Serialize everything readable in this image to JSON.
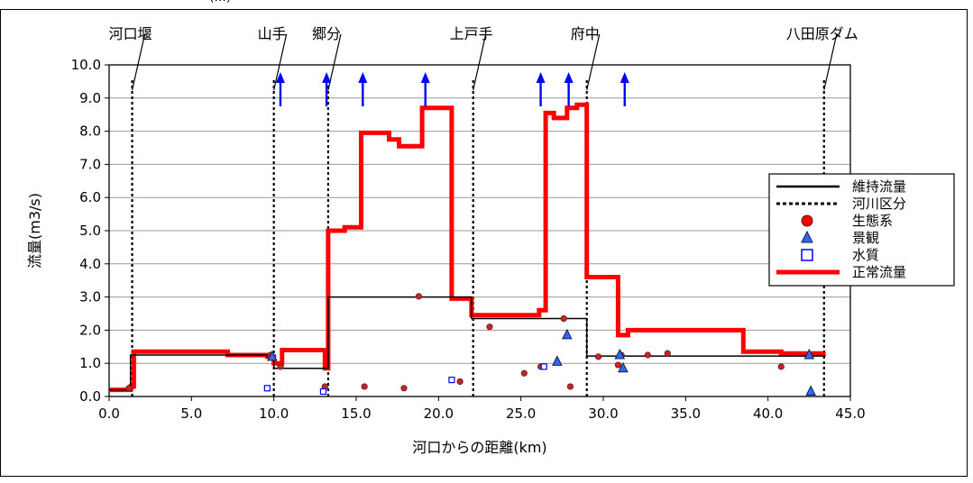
{
  "header_fragment": "(...)",
  "chart_data": {
    "type": "line",
    "xlabel": "河口からの距離(km)",
    "ylabel": "流量(m3/s)",
    "xlim": [
      0,
      45
    ],
    "ylim": [
      0,
      10
    ],
    "xticks": [
      0,
      5,
      10,
      15,
      20,
      25,
      30,
      35,
      40,
      45
    ],
    "yticks": [
      0,
      1,
      2,
      3,
      4,
      5,
      6,
      7,
      8,
      9,
      10
    ],
    "xtick_labels": [
      "0.0",
      "5.0",
      "10.0",
      "15.0",
      "20.0",
      "25.0",
      "30.0",
      "35.0",
      "40.0",
      "45.0"
    ],
    "ytick_labels": [
      "0.0",
      "1.0",
      "2.0",
      "3.0",
      "4.0",
      "5.0",
      "6.0",
      "7.0",
      "8.0",
      "9.0",
      "10.0"
    ],
    "grid": true,
    "legend_position": "right",
    "legend": [
      {
        "label": "維持流量",
        "kind": "line",
        "color": "#000000"
      },
      {
        "label": "河川区分",
        "kind": "dotted",
        "color": "#000000"
      },
      {
        "label": "生態系",
        "kind": "circle",
        "color": "#ff0000"
      },
      {
        "label": "景観",
        "kind": "triangle",
        "color": "#3366ff"
      },
      {
        "label": "水質",
        "kind": "square",
        "color": "#0000ff"
      },
      {
        "label": "正常流量",
        "kind": "thickline",
        "color": "#ff0000"
      }
    ],
    "series": [
      {
        "name": "正常流量",
        "color": "#ff0000",
        "points": [
          [
            0,
            0.2
          ],
          [
            1.3,
            0.2
          ],
          [
            1.3,
            0.3
          ],
          [
            1.5,
            0.3
          ],
          [
            1.5,
            1.35
          ],
          [
            7.2,
            1.35
          ],
          [
            7.2,
            1.25
          ],
          [
            9.6,
            1.25
          ],
          [
            9.6,
            1.2
          ],
          [
            10.0,
            1.2
          ],
          [
            10.0,
            1.0
          ],
          [
            10.5,
            1.0
          ],
          [
            10.5,
            1.4
          ],
          [
            13.1,
            1.4
          ],
          [
            13.1,
            0.85
          ],
          [
            13.3,
            0.85
          ],
          [
            13.3,
            5.0
          ],
          [
            14.3,
            5.0
          ],
          [
            14.3,
            5.1
          ],
          [
            15.3,
            5.1
          ],
          [
            15.3,
            7.95
          ],
          [
            17.0,
            7.95
          ],
          [
            17.0,
            7.75
          ],
          [
            17.6,
            7.75
          ],
          [
            17.6,
            7.55
          ],
          [
            19.0,
            7.55
          ],
          [
            19.0,
            8.7
          ],
          [
            20.8,
            8.7
          ],
          [
            20.8,
            2.95
          ],
          [
            22.0,
            2.95
          ],
          [
            22.0,
            2.45
          ],
          [
            26.1,
            2.45
          ],
          [
            26.1,
            2.6
          ],
          [
            26.5,
            2.6
          ],
          [
            26.5,
            8.55
          ],
          [
            27.0,
            8.55
          ],
          [
            27.0,
            8.4
          ],
          [
            27.8,
            8.4
          ],
          [
            27.8,
            8.7
          ],
          [
            28.4,
            8.7
          ],
          [
            28.4,
            8.8
          ],
          [
            29.0,
            8.8
          ],
          [
            29.0,
            3.6
          ],
          [
            30.9,
            3.6
          ],
          [
            30.9,
            1.85
          ],
          [
            31.5,
            1.85
          ],
          [
            31.5,
            2.0
          ],
          [
            38.5,
            2.0
          ],
          [
            38.5,
            1.35
          ],
          [
            40.8,
            1.35
          ],
          [
            40.8,
            1.3
          ],
          [
            43.5,
            1.3
          ]
        ]
      },
      {
        "name": "維持流量",
        "color": "#000000",
        "points": [
          [
            0,
            0.2
          ],
          [
            1.3,
            0.2
          ],
          [
            1.3,
            1.25
          ],
          [
            9.6,
            1.25
          ],
          [
            9.6,
            1.2
          ],
          [
            10.0,
            1.2
          ],
          [
            10.0,
            0.85
          ],
          [
            13.3,
            0.85
          ],
          [
            13.3,
            3.0
          ],
          [
            22.0,
            3.0
          ],
          [
            22.0,
            2.35
          ],
          [
            29.0,
            2.35
          ],
          [
            29.0,
            1.22
          ],
          [
            43.5,
            1.22
          ]
        ]
      }
    ],
    "river_divisions": [
      {
        "x": 1.4,
        "label": "河口堰"
      },
      {
        "x": 10.0,
        "label": "山手"
      },
      {
        "x": 13.3,
        "label": "郷分"
      },
      {
        "x": 22.1,
        "label": "上戸手"
      },
      {
        "x": 29.0,
        "label": "府中"
      },
      {
        "x": 43.4,
        "label": "八田原ダム"
      }
    ],
    "inflow_arrows_x": [
      10.4,
      13.2,
      15.4,
      19.2,
      26.2,
      27.9,
      31.3
    ],
    "生態系": [
      [
        1.2,
        0.25
      ],
      [
        9.8,
        1.25
      ],
      [
        10.4,
        0.9
      ],
      [
        13.1,
        0.3
      ],
      [
        15.5,
        0.3
      ],
      [
        17.9,
        0.25
      ],
      [
        18.8,
        3.02
      ],
      [
        21.3,
        0.45
      ],
      [
        23.1,
        2.1
      ],
      [
        25.2,
        0.7
      ],
      [
        26.2,
        0.9
      ],
      [
        27.6,
        2.35
      ],
      [
        28.0,
        0.3
      ],
      [
        29.7,
        1.2
      ],
      [
        30.9,
        0.95
      ],
      [
        31.1,
        1.25
      ],
      [
        32.7,
        1.25
      ],
      [
        33.9,
        1.3
      ],
      [
        40.8,
        0.9
      ]
    ],
    "景観": [
      [
        9.9,
        1.2
      ],
      [
        27.2,
        1.05
      ],
      [
        27.8,
        1.85
      ],
      [
        31.0,
        1.25
      ],
      [
        31.2,
        0.85
      ],
      [
        42.5,
        1.25
      ],
      [
        42.6,
        0.15
      ]
    ],
    "水質": [
      [
        9.6,
        0.25
      ],
      [
        13.0,
        0.15
      ],
      [
        20.8,
        0.5
      ],
      [
        26.4,
        0.9
      ]
    ]
  }
}
